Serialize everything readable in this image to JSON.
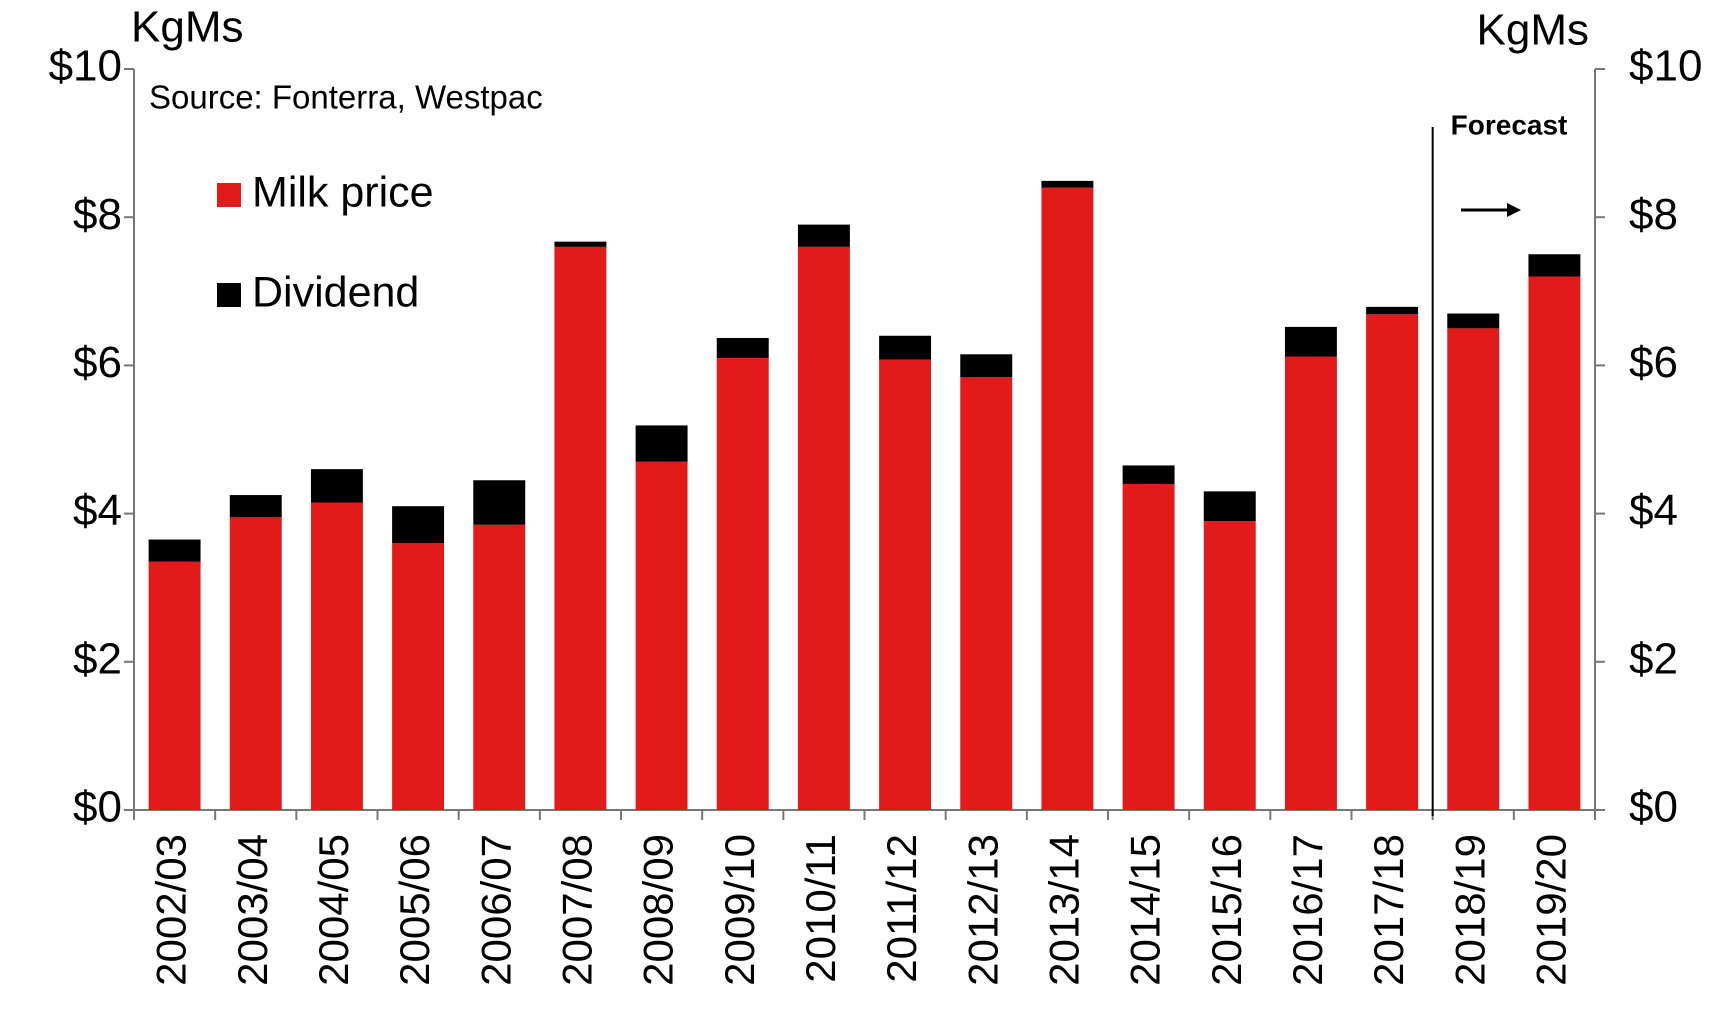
{
  "chart_data": {
    "type": "stacked_bar",
    "source": "Source: Fonterra, Westpac",
    "y_axis_label": "KgMs",
    "y2_axis_label": "KgMs",
    "annotation": "Forecast",
    "categories": [
      "2002/03",
      "2003/04",
      "2004/05",
      "2005/06",
      "2006/07",
      "2007/08",
      "2008/09",
      "2009/10",
      "2010/11",
      "2011/12",
      "2012/13",
      "2013/14",
      "2014/15",
      "2015/16",
      "2016/17",
      "2017/18",
      "2018/19",
      "2019/20"
    ],
    "series": [
      {
        "name": "Milk price",
        "color": "#e21a1a",
        "values": [
          3.35,
          3.95,
          4.15,
          3.6,
          3.85,
          7.6,
          4.7,
          6.1,
          7.6,
          6.08,
          5.84,
          8.4,
          4.4,
          3.9,
          6.12,
          6.69,
          6.5,
          7.2
        ]
      },
      {
        "name": "Dividend",
        "color": "#000000",
        "values": [
          0.3,
          0.3,
          0.45,
          0.5,
          0.6,
          0.07,
          0.49,
          0.27,
          0.3,
          0.32,
          0.31,
          0.09,
          0.25,
          0.4,
          0.4,
          0.1,
          0.2,
          0.3
        ]
      }
    ],
    "ylim": [
      0,
      10
    ],
    "yticks": [
      {
        "value": 0,
        "label": "$0"
      },
      {
        "value": 2,
        "label": "$2"
      },
      {
        "value": 4,
        "label": "$4"
      },
      {
        "value": 6,
        "label": "$6"
      },
      {
        "value": 8,
        "label": "$8"
      },
      {
        "value": 10,
        "label": "$10"
      }
    ],
    "y2lim": [
      0,
      10
    ],
    "y2ticks": [
      {
        "value": 0,
        "label": "$0"
      },
      {
        "value": 2,
        "label": "$2"
      },
      {
        "value": 4,
        "label": "$4"
      },
      {
        "value": 6,
        "label": "$6"
      },
      {
        "value": 8,
        "label": "$8"
      },
      {
        "value": 10,
        "label": "$10"
      }
    ]
  }
}
